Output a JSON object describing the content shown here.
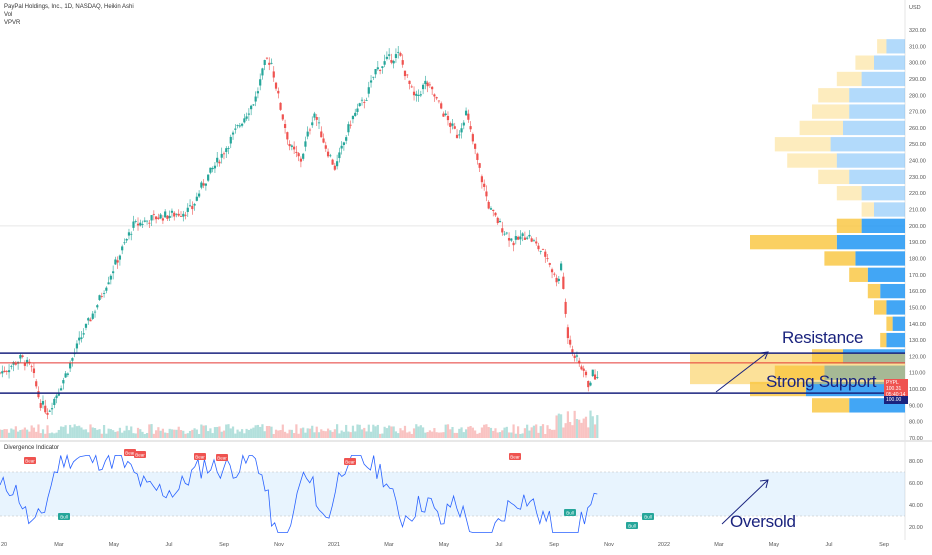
{
  "header": {
    "symbol_line": "PayPal Holdings, Inc., 1D, NASDAQ, Heikin Ashi",
    "vol_label": "Vol",
    "vpvr_label": "VPVR"
  },
  "oscillator": {
    "title": "Divergence Indicator"
  },
  "annotations": {
    "resistance": "Resistance",
    "support": "Strong Support",
    "oversold": "Oversold"
  },
  "price_tags": {
    "symbol": "PYPL",
    "price": "100.31",
    "countdown": "05:40:14",
    "support_level": "100.00"
  },
  "colors": {
    "up": "#26a69a",
    "down": "#ef5350",
    "level": "#1a237e",
    "resistance_line": "#e53935",
    "vpvr_blue": "#2196f3",
    "vpvr_orange": "#f9c846",
    "osc_line": "#2962ff"
  },
  "chart_data": [
    {
      "type": "candlestick",
      "style": "Heikin Ashi",
      "currency": "USD",
      "ylim": [
        70,
        320
      ],
      "y_ticks": [
        70,
        80,
        90,
        100,
        110,
        120,
        130,
        140,
        150,
        160,
        170,
        180,
        190,
        200,
        210,
        220,
        230,
        240,
        250,
        260,
        270,
        280,
        290,
        300,
        310,
        320
      ],
      "x_ticks": [
        "20",
        "Mar",
        "May",
        "Jul",
        "Sep",
        "Nov",
        "2021",
        "Mar",
        "May",
        "Jul",
        "Sep",
        "Nov",
        "2022",
        "Mar",
        "May",
        "Jul",
        "Sep"
      ],
      "close_path": [
        {
          "x": 0,
          "y": 110
        },
        {
          "x": 0.3,
          "y": 113
        },
        {
          "x": 0.8,
          "y": 119
        },
        {
          "x": 1.2,
          "y": 112
        },
        {
          "x": 1.5,
          "y": 92
        },
        {
          "x": 1.8,
          "y": 86
        },
        {
          "x": 2.1,
          "y": 96
        },
        {
          "x": 2.5,
          "y": 110
        },
        {
          "x": 3.0,
          "y": 130
        },
        {
          "x": 3.6,
          "y": 150
        },
        {
          "x": 4.2,
          "y": 172
        },
        {
          "x": 5.0,
          "y": 200
        },
        {
          "x": 5.8,
          "y": 205
        },
        {
          "x": 6.5,
          "y": 207
        },
        {
          "x": 7.2,
          "y": 210
        },
        {
          "x": 7.6,
          "y": 225
        },
        {
          "x": 8.2,
          "y": 240
        },
        {
          "x": 9.0,
          "y": 262
        },
        {
          "x": 9.6,
          "y": 278
        },
        {
          "x": 10.0,
          "y": 302
        },
        {
          "x": 10.2,
          "y": 300
        },
        {
          "x": 10.5,
          "y": 275
        },
        {
          "x": 10.9,
          "y": 248
        },
        {
          "x": 11.3,
          "y": 240
        },
        {
          "x": 11.8,
          "y": 270
        },
        {
          "x": 12.2,
          "y": 250
        },
        {
          "x": 12.6,
          "y": 235
        },
        {
          "x": 13.2,
          "y": 265
        },
        {
          "x": 13.8,
          "y": 280
        },
        {
          "x": 14.1,
          "y": 295
        },
        {
          "x": 14.6,
          "y": 302
        },
        {
          "x": 15.0,
          "y": 305
        },
        {
          "x": 15.3,
          "y": 290
        },
        {
          "x": 15.6,
          "y": 277
        },
        {
          "x": 16.0,
          "y": 288
        },
        {
          "x": 16.3,
          "y": 280
        },
        {
          "x": 16.8,
          "y": 265
        },
        {
          "x": 17.2,
          "y": 255
        },
        {
          "x": 17.5,
          "y": 270
        },
        {
          "x": 18.0,
          "y": 235
        },
        {
          "x": 18.4,
          "y": 210
        },
        {
          "x": 18.9,
          "y": 198
        },
        {
          "x": 19.3,
          "y": 190
        },
        {
          "x": 19.8,
          "y": 195
        },
        {
          "x": 20.2,
          "y": 187
        },
        {
          "x": 20.6,
          "y": 180
        },
        {
          "x": 20.9,
          "y": 165
        },
        {
          "x": 21.1,
          "y": 175
        },
        {
          "x": 21.3,
          "y": 135
        },
        {
          "x": 21.6,
          "y": 120
        },
        {
          "x": 21.9,
          "y": 112
        },
        {
          "x": 22.1,
          "y": 103
        },
        {
          "x": 22.3,
          "y": 110
        },
        {
          "x": 22.5,
          "y": 105
        }
      ],
      "horizontal_levels": [
        {
          "price": 122,
          "label": "Resistance (top)"
        },
        {
          "price": 116,
          "label": "Resistance (mid)"
        },
        {
          "price": 97.5,
          "label": "Support"
        }
      ]
    },
    {
      "type": "histogram",
      "name": "VPVR",
      "price_buckets": [
        310,
        300,
        290,
        280,
        270,
        260,
        250,
        240,
        230,
        220,
        210,
        200,
        190,
        180,
        170,
        160,
        150,
        140,
        130,
        120,
        110,
        100,
        90
      ],
      "volume_up": [
        6,
        10,
        14,
        18,
        18,
        20,
        24,
        22,
        18,
        14,
        10,
        14,
        22,
        16,
        12,
        8,
        6,
        4,
        6,
        20,
        26,
        32,
        18
      ],
      "volume_down": [
        3,
        6,
        8,
        10,
        12,
        14,
        18,
        16,
        10,
        8,
        4,
        8,
        28,
        10,
        6,
        4,
        4,
        2,
        2,
        10,
        16,
        18,
        12
      ]
    },
    {
      "type": "line",
      "name": "Divergence Indicator",
      "ylim": [
        10,
        90
      ],
      "y_ticks": [
        20,
        40,
        60,
        80
      ],
      "band": [
        30,
        70
      ],
      "labels": [
        "Bear",
        "Bear",
        "Bear",
        "Bear",
        "Bear",
        "Bear",
        "Bear",
        "Bull",
        "Bull",
        "Bull",
        "Bull"
      ]
    }
  ]
}
